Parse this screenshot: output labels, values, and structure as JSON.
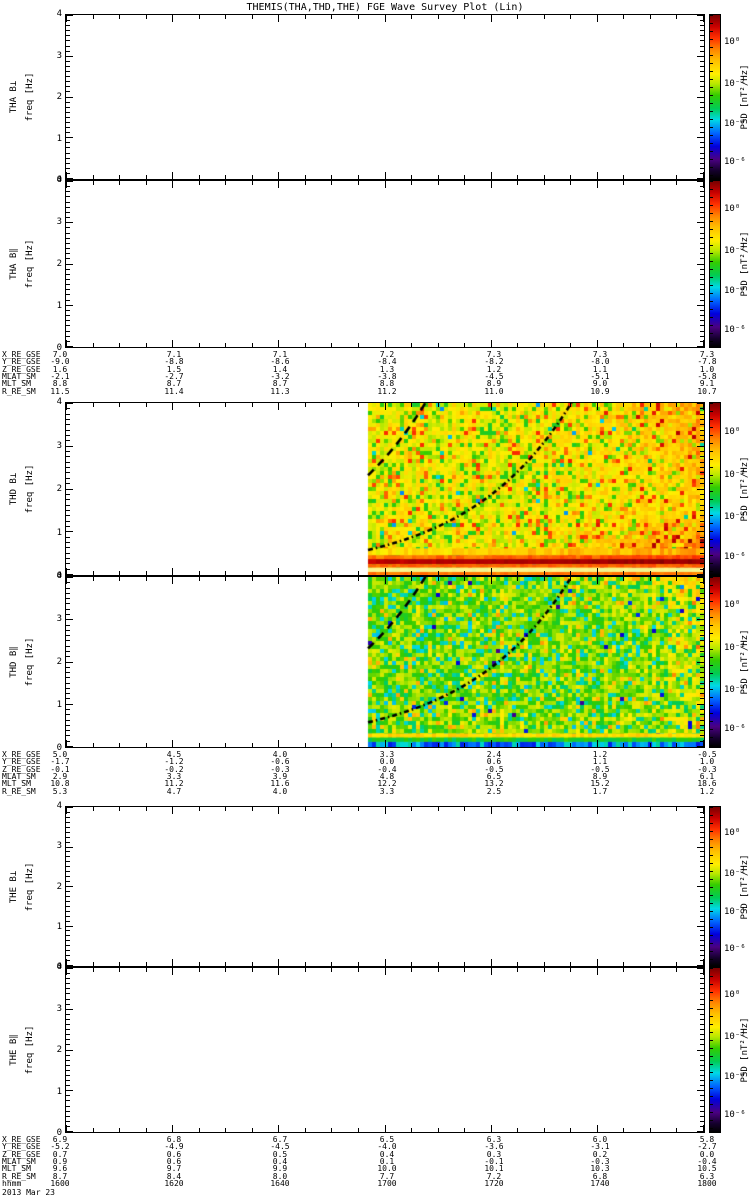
{
  "title": "THEMIS(THA,THD,THE) FGE Wave Survey Plot (Lin)",
  "date_label": "2013 Mar 23",
  "colors": {
    "frame": "#000000",
    "background": "#ffffff",
    "overlay_curve": "#000000"
  },
  "colorbar": {
    "label": "PSD [nT²/Hz]",
    "tick_labels": [
      "10⁰",
      "10⁻²",
      "10⁻⁴",
      "10⁻⁶"
    ],
    "gradient": [
      [
        0.0,
        "#000000"
      ],
      [
        0.05,
        "#14002b"
      ],
      [
        0.12,
        "#4b0082"
      ],
      [
        0.2,
        "#0000dd"
      ],
      [
        0.28,
        "#0066ff"
      ],
      [
        0.36,
        "#00d9e6"
      ],
      [
        0.43,
        "#00cc55"
      ],
      [
        0.51,
        "#33cc00"
      ],
      [
        0.58,
        "#b8e800"
      ],
      [
        0.64,
        "#ffee00"
      ],
      [
        0.72,
        "#ffc000"
      ],
      [
        0.79,
        "#ff8400"
      ],
      [
        0.86,
        "#ff3000"
      ],
      [
        0.93,
        "#c80000"
      ],
      [
        1.0,
        "#780000"
      ]
    ]
  },
  "panels": [
    {
      "id": "tha-bperp",
      "instrument_label": "THA B⊥",
      "axis_label": "freq [Hz]",
      "yticks": [
        "0",
        "1",
        "2",
        "3",
        "4"
      ],
      "has_data": false
    },
    {
      "id": "tha-bpar",
      "instrument_label": "THA B∥",
      "axis_label": "freq [Hz]",
      "yticks": [
        "0",
        "1",
        "2",
        "3",
        "4"
      ],
      "has_data": false
    },
    {
      "id": "thd-bperp",
      "instrument_label": "THD B⊥",
      "axis_label": "freq [Hz]",
      "yticks": [
        "0",
        "1",
        "2",
        "3",
        "4"
      ],
      "has_data": true
    },
    {
      "id": "thd-bpar",
      "instrument_label": "THD B∥",
      "axis_label": "freq [Hz]",
      "yticks": [
        "0",
        "1",
        "2",
        "3",
        "4"
      ],
      "has_data": true
    },
    {
      "id": "the-bperp",
      "instrument_label": "THE B⊥",
      "axis_label": "freq [Hz]",
      "yticks": [
        "0",
        "1",
        "2",
        "3",
        "4"
      ],
      "has_data": false
    },
    {
      "id": "the-bpar",
      "instrument_label": "THE B∥",
      "axis_label": "freq [Hz]",
      "yticks": [
        "0",
        "1",
        "2",
        "3",
        "4"
      ],
      "has_data": false
    }
  ],
  "ephemeris_blocks": [
    {
      "spacecraft": "THA",
      "rows": [
        {
          "label": "X_RE_GSE",
          "values": [
            "7.0",
            "7.1",
            "7.1",
            "7.2",
            "7.3",
            "7.3",
            "7.3"
          ]
        },
        {
          "label": "Y_RE_GSE",
          "values": [
            "-9.0",
            "-8.8",
            "-8.6",
            "-8.4",
            "-8.2",
            "-8.0",
            "-7.8"
          ]
        },
        {
          "label": "Z_RE_GSE",
          "values": [
            "1.6",
            "1.5",
            "1.4",
            "1.3",
            "1.2",
            "1.1",
            "1.0"
          ]
        },
        {
          "label": "MLAT_SM",
          "values": [
            "-2.1",
            "-2.7",
            "-3.2",
            "-3.8",
            "-4.5",
            "-5.1",
            "-5.8"
          ]
        },
        {
          "label": "MLT_SM",
          "values": [
            "8.8",
            "8.7",
            "8.7",
            "8.8",
            "8.9",
            "9.0",
            "9.1"
          ]
        },
        {
          "label": "R_RE_SM",
          "values": [
            "11.5",
            "11.4",
            "11.3",
            "11.2",
            "11.0",
            "10.9",
            "10.7"
          ]
        }
      ]
    },
    {
      "spacecraft": "THD",
      "rows": [
        {
          "label": "X_RE_GSE",
          "values": [
            "5.0",
            "4.5",
            "4.0",
            "3.3",
            "2.4",
            "1.2",
            "-0.5"
          ]
        },
        {
          "label": "Y_RE_GSE",
          "values": [
            "-1.7",
            "-1.2",
            "-0.6",
            "0.0",
            "0.6",
            "1.1",
            "1.0"
          ]
        },
        {
          "label": "Z_RE_GSE",
          "values": [
            "-0.1",
            "-0.2",
            "-0.3",
            "-0.4",
            "-0.5",
            "-0.5",
            "-0.3"
          ]
        },
        {
          "label": "MLAT_SM",
          "values": [
            "2.9",
            "3.3",
            "3.9",
            "4.8",
            "6.5",
            "8.9",
            "6.1"
          ]
        },
        {
          "label": "MLT_SM",
          "values": [
            "10.8",
            "11.2",
            "11.6",
            "12.2",
            "13.2",
            "15.2",
            "18.6"
          ]
        },
        {
          "label": "R_RE_SM",
          "values": [
            "5.3",
            "4.7",
            "4.0",
            "3.3",
            "2.5",
            "1.7",
            "1.2"
          ]
        }
      ]
    },
    {
      "spacecraft": "THE",
      "rows": [
        {
          "label": "X_RE_GSE",
          "values": [
            "6.9",
            "6.8",
            "6.7",
            "6.5",
            "6.3",
            "6.0",
            "5.8"
          ]
        },
        {
          "label": "Y_RE_GSE",
          "values": [
            "-5.2",
            "-4.9",
            "-4.5",
            "-4.0",
            "-3.6",
            "-3.1",
            "-2.7"
          ]
        },
        {
          "label": "Z_RE_GSE",
          "values": [
            "0.7",
            "0.6",
            "0.5",
            "0.4",
            "0.3",
            "0.2",
            "0.0"
          ]
        },
        {
          "label": "MLAT_SM",
          "values": [
            "0.9",
            "0.6",
            "0.4",
            "0.1",
            "-0.1",
            "-0.3",
            "-0.4"
          ]
        },
        {
          "label": "MLT_SM",
          "values": [
            "9.6",
            "9.7",
            "9.9",
            "10.0",
            "10.1",
            "10.3",
            "10.5"
          ]
        },
        {
          "label": "R_RE_SM",
          "values": [
            "8.7",
            "8.4",
            "8.0",
            "7.7",
            "7.2",
            "6.8",
            "6.3"
          ]
        },
        {
          "label": "hhmm",
          "values": [
            "1600",
            "1620",
            "1640",
            "1700",
            "1720",
            "1740",
            "1800"
          ]
        }
      ]
    }
  ],
  "chart_data": {
    "type": "heatmap",
    "title": "THEMIS(THA,THD,THE) FGE Wave Survey Plot (Lin)",
    "x": {
      "label": "hhmm (2013 Mar 23)",
      "ticks": [
        "1600",
        "1620",
        "1640",
        "1700",
        "1720",
        "1740",
        "1800"
      ],
      "minor_tick_minutes": 5
    },
    "y": {
      "label": "freq [Hz]",
      "range": [
        0,
        4
      ],
      "scale": "linear"
    },
    "z": {
      "label": "PSD [nT²/Hz]",
      "scale": "log",
      "tick_labels": [
        "10⁰",
        "10⁻²",
        "10⁻⁴",
        "10⁻⁶"
      ]
    },
    "layout_note": "Six stacked spectrogram panels (B-perp and B-parallel for THA, THD, THE), each with its own rainbow PSD colorbar; ephemeris readouts printed under each spacecraft pair.",
    "panels": [
      {
        "name": "THA B⊥",
        "has_data": false
      },
      {
        "name": "THA B∥",
        "has_data": false
      },
      {
        "name": "THD B⊥",
        "has_data": true,
        "data_start": "~1657",
        "features": [
          "intense dark-red PSD band near 0.2-0.45 Hz spanning all times with data",
          "bright pale-yellow band below ~0.17 Hz over red base line",
          "broadband yellow/orange background with green speckle",
          "PSD below ~1.3 Hz reddens toward perigee at right edge",
          "black dashed ion gyrofrequency overlays (H+ and He+)"
        ]
      },
      {
        "name": "THD B∥",
        "has_data": true,
        "data_start": "~1657",
        "features": [
          "yellow-green speckled background with cyan flecks",
          "low-PSD cyan/blue band below ~0.12 Hz",
          "yellow-orange stripe near 0.22-0.32 Hz",
          "slight orange enhancement at upper right",
          "black dashed ion gyrofrequency overlays (H+ and He+)"
        ]
      },
      {
        "name": "THE B⊥",
        "has_data": false
      },
      {
        "name": "THE B∥",
        "has_data": false
      }
    ],
    "overlay_curves": {
      "description": "ion gyrofrequency lines rising toward perigee",
      "fhe0": 0.58,
      "k": 0.0095,
      "proton_multiple": 4,
      "color": "#000000"
    },
    "spectro_render": [
      {
        "panel_index": 2,
        "seed": 11,
        "data_start_frac": 0.4734,
        "base": 0.63,
        "noise": 0.055,
        "speckles": [
          {
            "p": 0.13,
            "lo": 0.46,
            "hi": 0.54
          },
          {
            "p": 0.09,
            "lo": 0.73,
            "hi": 0.87
          },
          {
            "p": 0.012,
            "lo": 0.3,
            "hi": 0.4
          }
        ],
        "low_right_bias": {
          "start": 0.35,
          "amount": 0.2,
          "fmax": 1.35
        },
        "right_bias": {
          "start": 0.55,
          "amount": 0.06
        },
        "top_right_bias": {
          "start": 0.5,
          "amount": 0.06,
          "fmin": 2.0
        },
        "bands": [
          {
            "f0": 0.46,
            "f1": 0.62,
            "v": 0.7,
            "jitter": 0.05,
            "xfade": 0.1
          },
          {
            "f0": 0.37,
            "f1": 0.46,
            "v": 0.82,
            "jitter": 0.03,
            "xfade": 0.05
          },
          {
            "f0": 0.25,
            "f1": 0.37,
            "v": 0.955,
            "jitter": 0.015,
            "xfade": 0.04
          },
          {
            "f0": 0.17,
            "f1": 0.25,
            "v": 0.82,
            "jitter": 0.02
          },
          {
            "f0": 0.07,
            "f1": 0.17,
            "v": 0.63,
            "jitter": 0.02,
            "bright": true
          },
          {
            "f0": 0.0,
            "f1": 0.07,
            "v": 0.8,
            "jitter": 0.02
          }
        ]
      },
      {
        "panel_index": 3,
        "seed": 23,
        "data_start_frac": 0.4734,
        "base": 0.55,
        "noise": 0.07,
        "speckles": [
          {
            "p": 0.16,
            "lo": 0.34,
            "hi": 0.43
          },
          {
            "p": 0.05,
            "lo": 0.67,
            "hi": 0.76
          },
          {
            "p": 0.01,
            "lo": 0.12,
            "hi": 0.24
          }
        ],
        "right_bias": {
          "start": 0.75,
          "amount": 0.05
        },
        "top_right_bias": {
          "start": 0.45,
          "amount": 0.07,
          "fmin": 3.1
        },
        "bands": [
          {
            "f0": 0.22,
            "f1": 0.32,
            "v": 0.68,
            "jitter": 0.035
          },
          {
            "f0": 0.12,
            "f1": 0.22,
            "v": 0.47,
            "jitter": 0.05
          },
          {
            "f0": 0.0,
            "f1": 0.12,
            "v": 0.31,
            "jitter": 0.09
          }
        ]
      }
    ]
  }
}
